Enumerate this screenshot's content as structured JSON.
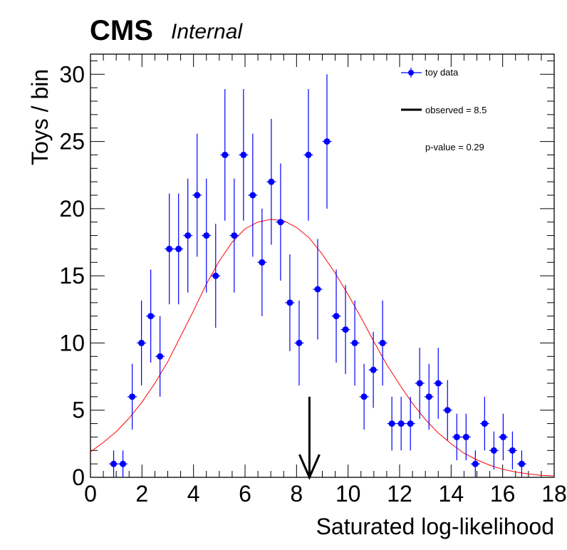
{
  "header": {
    "experiment": "CMS",
    "status": "Internal"
  },
  "chart_data": {
    "type": "scatter",
    "xlabel": "Saturated log-likelihood",
    "ylabel": "Toys / bin",
    "xlim": [
      0,
      18
    ],
    "ylim": [
      0,
      31.5
    ],
    "xticks": [
      0,
      2,
      4,
      6,
      8,
      10,
      12,
      14,
      16,
      18
    ],
    "yticks": [
      0,
      5,
      10,
      15,
      20,
      25,
      30
    ],
    "grid": false,
    "legend_position": "top-right",
    "colors": {
      "data": "#0000ff",
      "fit": "#ff0000",
      "observed": "#000000"
    },
    "series": [
      {
        "name": "toy data",
        "bin_width": 0.36,
        "x": [
          0.9,
          1.26,
          1.62,
          1.98,
          2.34,
          2.7,
          3.06,
          3.42,
          3.78,
          4.14,
          4.5,
          4.86,
          5.22,
          5.58,
          5.94,
          6.3,
          6.66,
          7.02,
          7.38,
          7.74,
          8.1,
          8.46,
          8.82,
          9.18,
          9.54,
          9.9,
          10.26,
          10.62,
          10.98,
          11.34,
          11.7,
          12.06,
          12.42,
          12.78,
          13.14,
          13.5,
          13.86,
          14.22,
          14.58,
          14.94,
          15.3,
          15.66,
          16.02,
          16.38,
          16.74
        ],
        "y": [
          1,
          1,
          6,
          10,
          12,
          9,
          17,
          17,
          18,
          21,
          18,
          15,
          24,
          18,
          24,
          21,
          16,
          22,
          19,
          13,
          10,
          24,
          14,
          25,
          12,
          11,
          10,
          6,
          8,
          10,
          4,
          4,
          4,
          7,
          6,
          7,
          5,
          3,
          3,
          1,
          4,
          2,
          3,
          2,
          1
        ]
      },
      {
        "name": "fit",
        "type": "line",
        "x": [
          0.0,
          0.5,
          1.0,
          1.5,
          2.0,
          2.5,
          3.0,
          3.5,
          4.0,
          4.5,
          5.0,
          5.5,
          6.0,
          6.5,
          7.0,
          7.5,
          8.0,
          8.5,
          9.0,
          9.5,
          10.0,
          10.5,
          11.0,
          11.5,
          12.0,
          12.5,
          13.0,
          13.5,
          14.0,
          14.5,
          15.0,
          15.5,
          16.0,
          16.5,
          17.0,
          17.5,
          18.0
        ],
        "y": [
          1.9,
          2.6,
          3.4,
          4.4,
          5.6,
          7.0,
          8.6,
          10.5,
          12.4,
          14.4,
          16.1,
          17.5,
          18.5,
          19.0,
          19.2,
          19.1,
          18.6,
          17.8,
          16.6,
          15.2,
          13.6,
          11.9,
          10.1,
          8.4,
          6.9,
          5.5,
          4.3,
          3.3,
          2.5,
          1.8,
          1.3,
          0.9,
          0.6,
          0.4,
          0.25,
          0.15,
          0.1
        ]
      }
    ],
    "observed": 8.5,
    "legend": {
      "data_label": "toy data",
      "observed_label": "observed = 8.5",
      "pvalue_label": "p-value = 0.29"
    }
  }
}
